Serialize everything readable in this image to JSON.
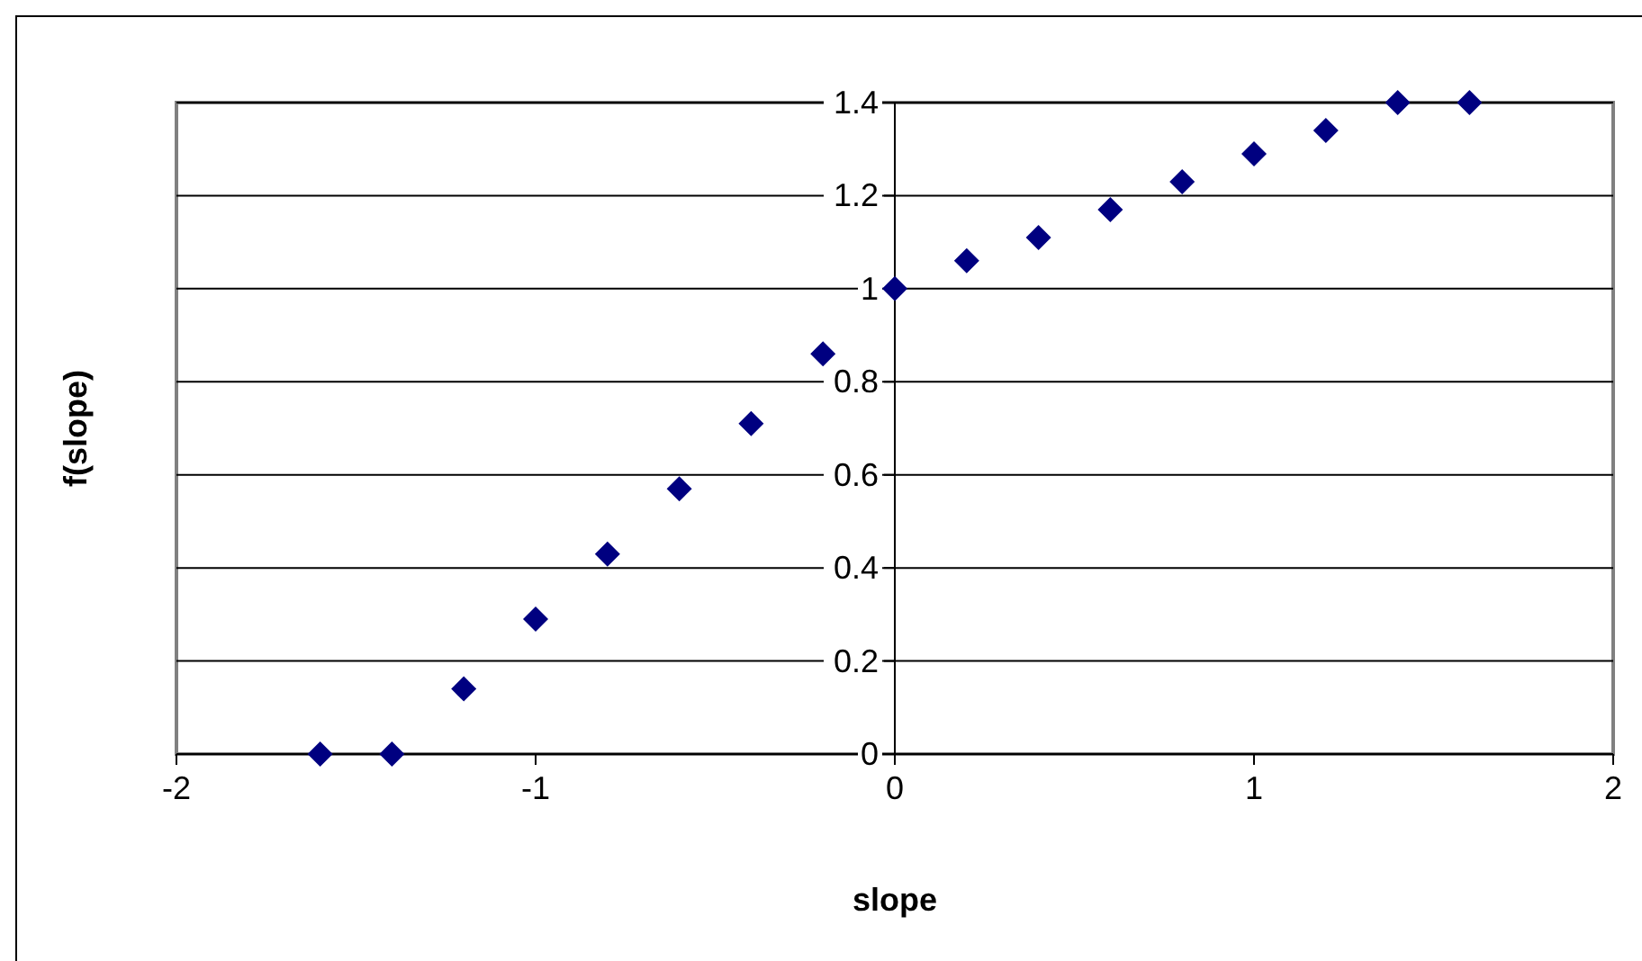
{
  "chart_data": {
    "type": "scatter",
    "xlabel": "slope",
    "ylabel": "f(slope)",
    "x": [
      -1.6,
      -1.4,
      -1.2,
      -1,
      -0.8,
      -0.6,
      -0.4,
      -0.2,
      0,
      0.2,
      0.4,
      0.6,
      0.8,
      1,
      1.2,
      1.4,
      1.6
    ],
    "series": [
      {
        "color": "#000080",
        "values": [
          0,
          0,
          0.14,
          0.29,
          0.43,
          0.57,
          0.71,
          0.86,
          1,
          1.06,
          1.11,
          1.17,
          1.23,
          1.29,
          1.34,
          1.4,
          1.4
        ]
      }
    ],
    "xlim": [
      -2,
      2
    ],
    "xticks": [
      -2,
      -1,
      0,
      1,
      2
    ],
    "ylim": [
      0,
      1.4
    ],
    "yticks": [
      0,
      0.2,
      0.4,
      0.6,
      0.8,
      1,
      1.2,
      1.4
    ],
    "grid": "y",
    "marker": "diamond"
  }
}
